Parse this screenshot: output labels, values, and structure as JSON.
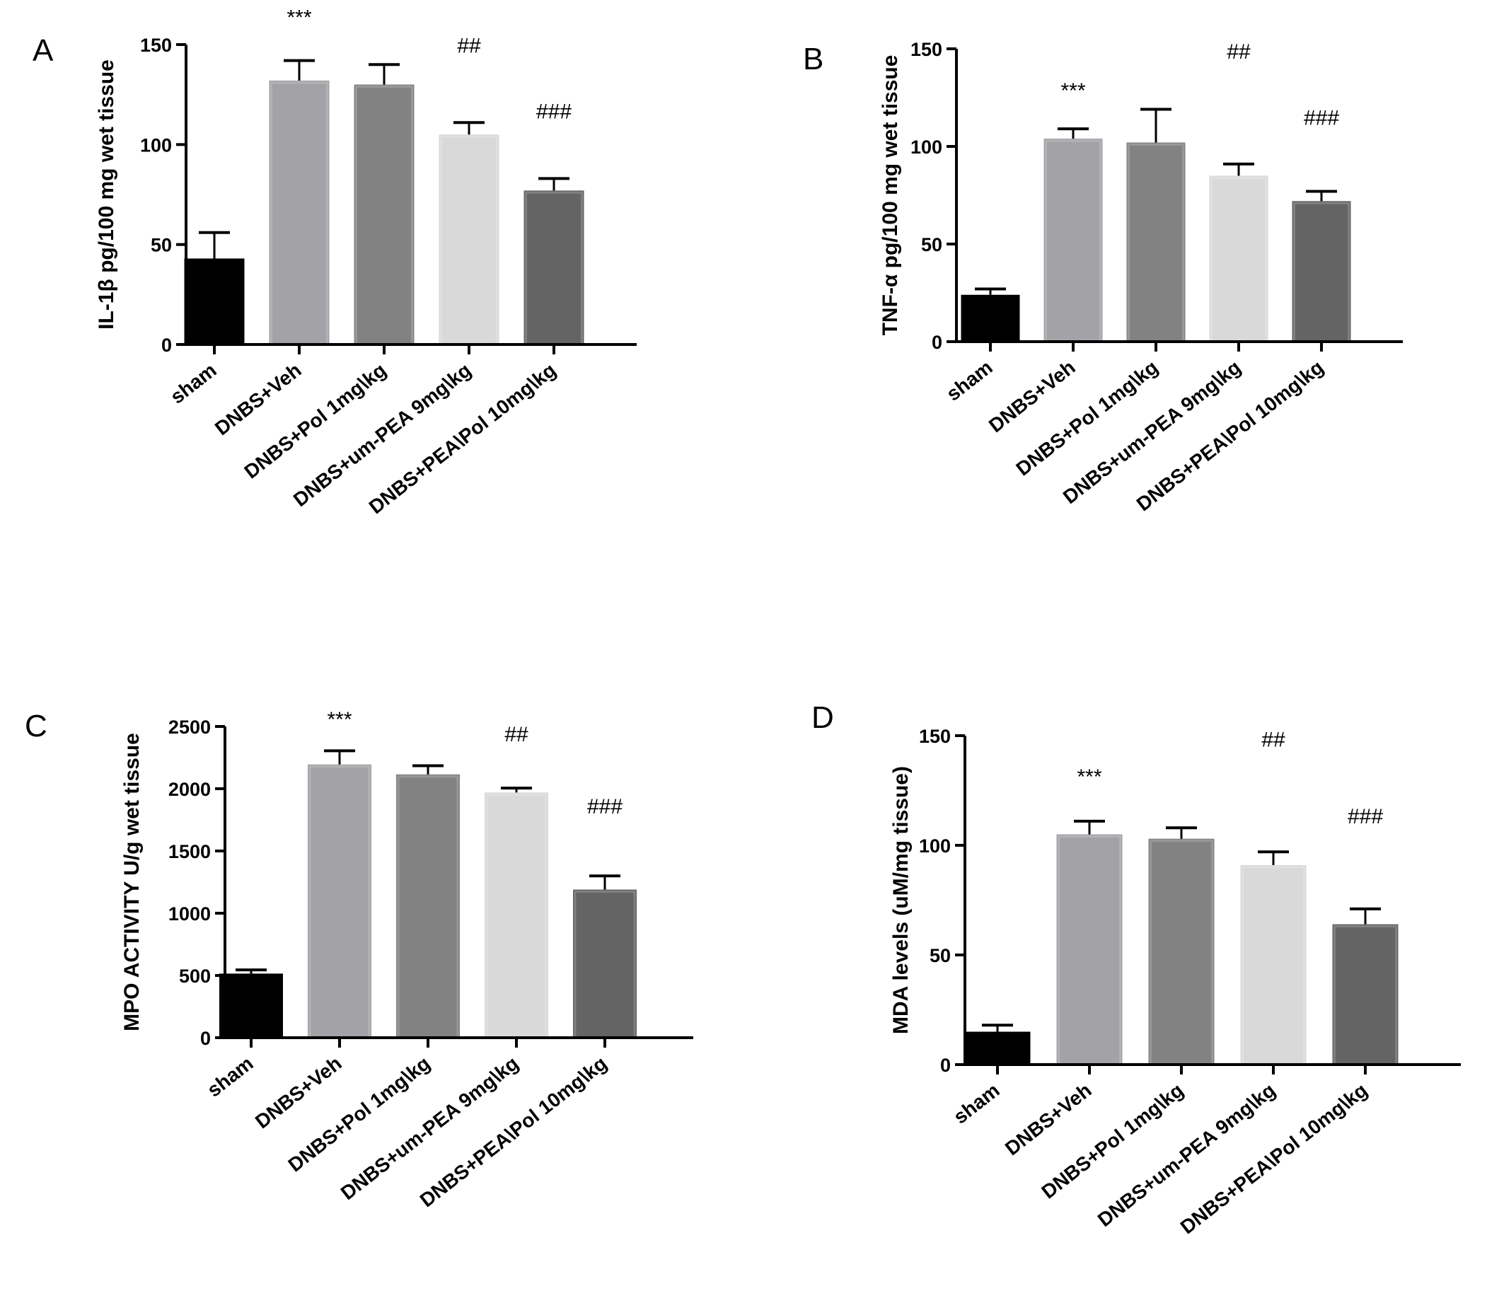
{
  "chart_data": [
    {
      "type": "bar",
      "panel": "A",
      "ylabel": "IL-1β pg/100 mg wet tissue",
      "ylim": [
        0,
        150
      ],
      "yticks": [
        "0",
        "50",
        "100",
        "150"
      ],
      "categories": [
        "sham",
        "DNBS+Veh",
        "DNBS+Pol 1mg\\kg",
        "DNBS+um-PEA 9mg\\kg",
        "DNBS+PEA\\Pol 10mg\\kg"
      ],
      "values": [
        43,
        132,
        130,
        105,
        77
      ],
      "errors": [
        13,
        10,
        10,
        6,
        6
      ],
      "colors": [
        "#000000",
        "#a3a3a7",
        "#828282",
        "#d9d9d9",
        "#646464"
      ],
      "annotations": [
        {
          "category": 1,
          "text": "***",
          "value": 160
        },
        {
          "category": 3,
          "text": "##",
          "value": 146
        },
        {
          "category": 4,
          "text": "###",
          "value": 113
        }
      ]
    },
    {
      "type": "bar",
      "panel": "B",
      "ylabel": "TNF-α pg/100 mg wet tissue",
      "ylim": [
        0,
        150
      ],
      "yticks": [
        "0",
        "50",
        "100",
        "150"
      ],
      "categories": [
        "sham",
        "DNBS+Veh",
        "DNBS+Pol 1mg\\kg",
        "DNBS+um-PEA 9mg\\kg",
        "DNBS+PEA\\Pol 10mg\\kg"
      ],
      "values": [
        24,
        104,
        102,
        85,
        72
      ],
      "errors": [
        3,
        5,
        17,
        6,
        5
      ],
      "colors": [
        "#000000",
        "#a3a3a7",
        "#828282",
        "#d9d9d9",
        "#646464"
      ],
      "annotations": [
        {
          "category": 1,
          "text": "***",
          "value": 125
        },
        {
          "category": 3,
          "text": "##",
          "value": 145
        },
        {
          "category": 4,
          "text": "###",
          "value": 111
        }
      ]
    },
    {
      "type": "bar",
      "panel": "C",
      "ylabel": "MPO ACTIVITY U/g wet tissue",
      "ylim": [
        0,
        2500
      ],
      "yticks": [
        "0",
        "500",
        "1000",
        "1500",
        "2000",
        "2500"
      ],
      "categories": [
        "sham",
        "DNBS+Veh",
        "DNBS+Pol 1mg\\kg",
        "DNBS+um-PEA 9mg\\kg",
        "DNBS+PEA\\Pol 10mg\\kg"
      ],
      "values": [
        515,
        2195,
        2115,
        1970,
        1190
      ],
      "errors": [
        30,
        110,
        70,
        35,
        110
      ],
      "colors": [
        "#000000",
        "#a3a3a7",
        "#828282",
        "#d9d9d9",
        "#646464"
      ],
      "annotations": [
        {
          "category": 1,
          "text": "***",
          "value": 2500
        },
        {
          "category": 3,
          "text": "##",
          "value": 2380
        },
        {
          "category": 4,
          "text": "###",
          "value": 1800
        }
      ]
    },
    {
      "type": "bar",
      "panel": "D",
      "ylabel": "MDA levels (uM/mg  tissue)",
      "ylim": [
        0,
        150
      ],
      "yticks": [
        "0",
        "50",
        "100",
        "150"
      ],
      "categories": [
        "sham",
        "DNBS+Veh",
        "DNBS+Pol 1mg\\kg",
        "DNBS+um-PEA 9mg\\kg",
        "DNBS+PEA\\Pol 10mg\\kg"
      ],
      "values": [
        15,
        105,
        103,
        91,
        64
      ],
      "errors": [
        3,
        6,
        5,
        6,
        7
      ],
      "colors": [
        "#000000",
        "#a3a3a7",
        "#828282",
        "#d9d9d9",
        "#646464"
      ],
      "annotations": [
        {
          "category": 1,
          "text": "***",
          "value": 128
        },
        {
          "category": 3,
          "text": "##",
          "value": 145
        },
        {
          "category": 4,
          "text": "###",
          "value": 110
        }
      ]
    }
  ]
}
